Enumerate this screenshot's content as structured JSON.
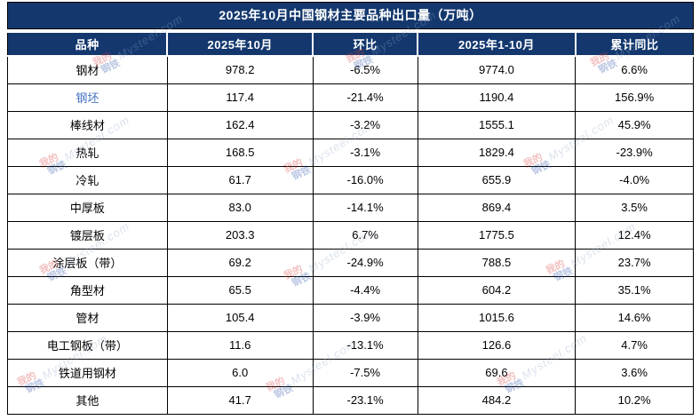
{
  "title": "2025年10月中国钢材主要品种出口量（万吨）",
  "table": {
    "columns": [
      "品种",
      "2025年10月",
      "环比",
      "2025年1-10月",
      "累计同比"
    ],
    "rows": [
      {
        "name": "钢材",
        "oct": "978.2",
        "mom": "-6.5%",
        "ytd": "9774.0",
        "yoy": "6.6%",
        "link": false
      },
      {
        "name": "钢坯",
        "oct": "117.4",
        "mom": "-21.4%",
        "ytd": "1190.4",
        "yoy": "156.9%",
        "link": true
      },
      {
        "name": "棒线材",
        "oct": "162.4",
        "mom": "-3.2%",
        "ytd": "1555.1",
        "yoy": "45.9%",
        "link": false
      },
      {
        "name": "热轧",
        "oct": "168.5",
        "mom": "-3.1%",
        "ytd": "1829.4",
        "yoy": "-23.9%",
        "link": false
      },
      {
        "name": "冷轧",
        "oct": "61.7",
        "mom": "-16.0%",
        "ytd": "655.9",
        "yoy": "-4.0%",
        "link": false
      },
      {
        "name": "中厚板",
        "oct": "83.0",
        "mom": "-14.1%",
        "ytd": "869.4",
        "yoy": "3.5%",
        "link": false
      },
      {
        "name": "镀层板",
        "oct": "203.3",
        "mom": "6.7%",
        "ytd": "1775.5",
        "yoy": "12.4%",
        "link": false
      },
      {
        "name": "涂层板（带）",
        "oct": "69.2",
        "mom": "-24.9%",
        "ytd": "788.5",
        "yoy": "23.7%",
        "link": false
      },
      {
        "name": "角型材",
        "oct": "65.5",
        "mom": "-4.4%",
        "ytd": "604.2",
        "yoy": "35.1%",
        "link": false
      },
      {
        "name": "管材",
        "oct": "105.4",
        "mom": "-3.9%",
        "ytd": "1015.6",
        "yoy": "14.6%",
        "link": false
      },
      {
        "name": "电工钢板（带）",
        "oct": "11.6",
        "mom": "-13.1%",
        "ytd": "126.6",
        "yoy": "4.7%",
        "link": false
      },
      {
        "name": "铁道用钢材",
        "oct": "6.0",
        "mom": "-7.5%",
        "ytd": "69.6",
        "yoy": "3.6%",
        "link": false
      },
      {
        "name": "其他",
        "oct": "41.7",
        "mom": "-23.1%",
        "ytd": "484.2",
        "yoy": "10.2%",
        "link": false
      }
    ]
  },
  "watermark": {
    "logo_line1": "我的",
    "logo_line2": "钢铁",
    "site": "Mysteel.com"
  },
  "colors": {
    "header_bg": "#14386E",
    "border": "#000000",
    "link_text": "#4472C4",
    "body_text": "#000000"
  },
  "chart_data": {
    "type": "table",
    "title": "2025年10月中国钢材主要品种出口量（万吨）",
    "columns": [
      "品种",
      "2025年10月",
      "环比",
      "2025年1-10月",
      "累计同比"
    ],
    "rows": [
      [
        "钢材",
        978.2,
        "-6.5%",
        9774.0,
        "6.6%"
      ],
      [
        "钢坯",
        117.4,
        "-21.4%",
        1190.4,
        "156.9%"
      ],
      [
        "棒线材",
        162.4,
        "-3.2%",
        1555.1,
        "45.9%"
      ],
      [
        "热轧",
        168.5,
        "-3.1%",
        1829.4,
        "-23.9%"
      ],
      [
        "冷轧",
        61.7,
        "-16.0%",
        655.9,
        "-4.0%"
      ],
      [
        "中厚板",
        83.0,
        "-14.1%",
        869.4,
        "3.5%"
      ],
      [
        "镀层板",
        203.3,
        "6.7%",
        1775.5,
        "12.4%"
      ],
      [
        "涂层板（带）",
        69.2,
        "-24.9%",
        788.5,
        "23.7%"
      ],
      [
        "角型材",
        65.5,
        "-4.4%",
        604.2,
        "35.1%"
      ],
      [
        "管材",
        105.4,
        "-3.9%",
        1015.6,
        "14.6%"
      ],
      [
        "电工钢板（带）",
        11.6,
        "-13.1%",
        126.6,
        "4.7%"
      ],
      [
        "铁道用钢材",
        6.0,
        "-7.5%",
        69.6,
        "3.6%"
      ],
      [
        "其他",
        41.7,
        "-23.1%",
        484.2,
        "10.2%"
      ]
    ]
  }
}
